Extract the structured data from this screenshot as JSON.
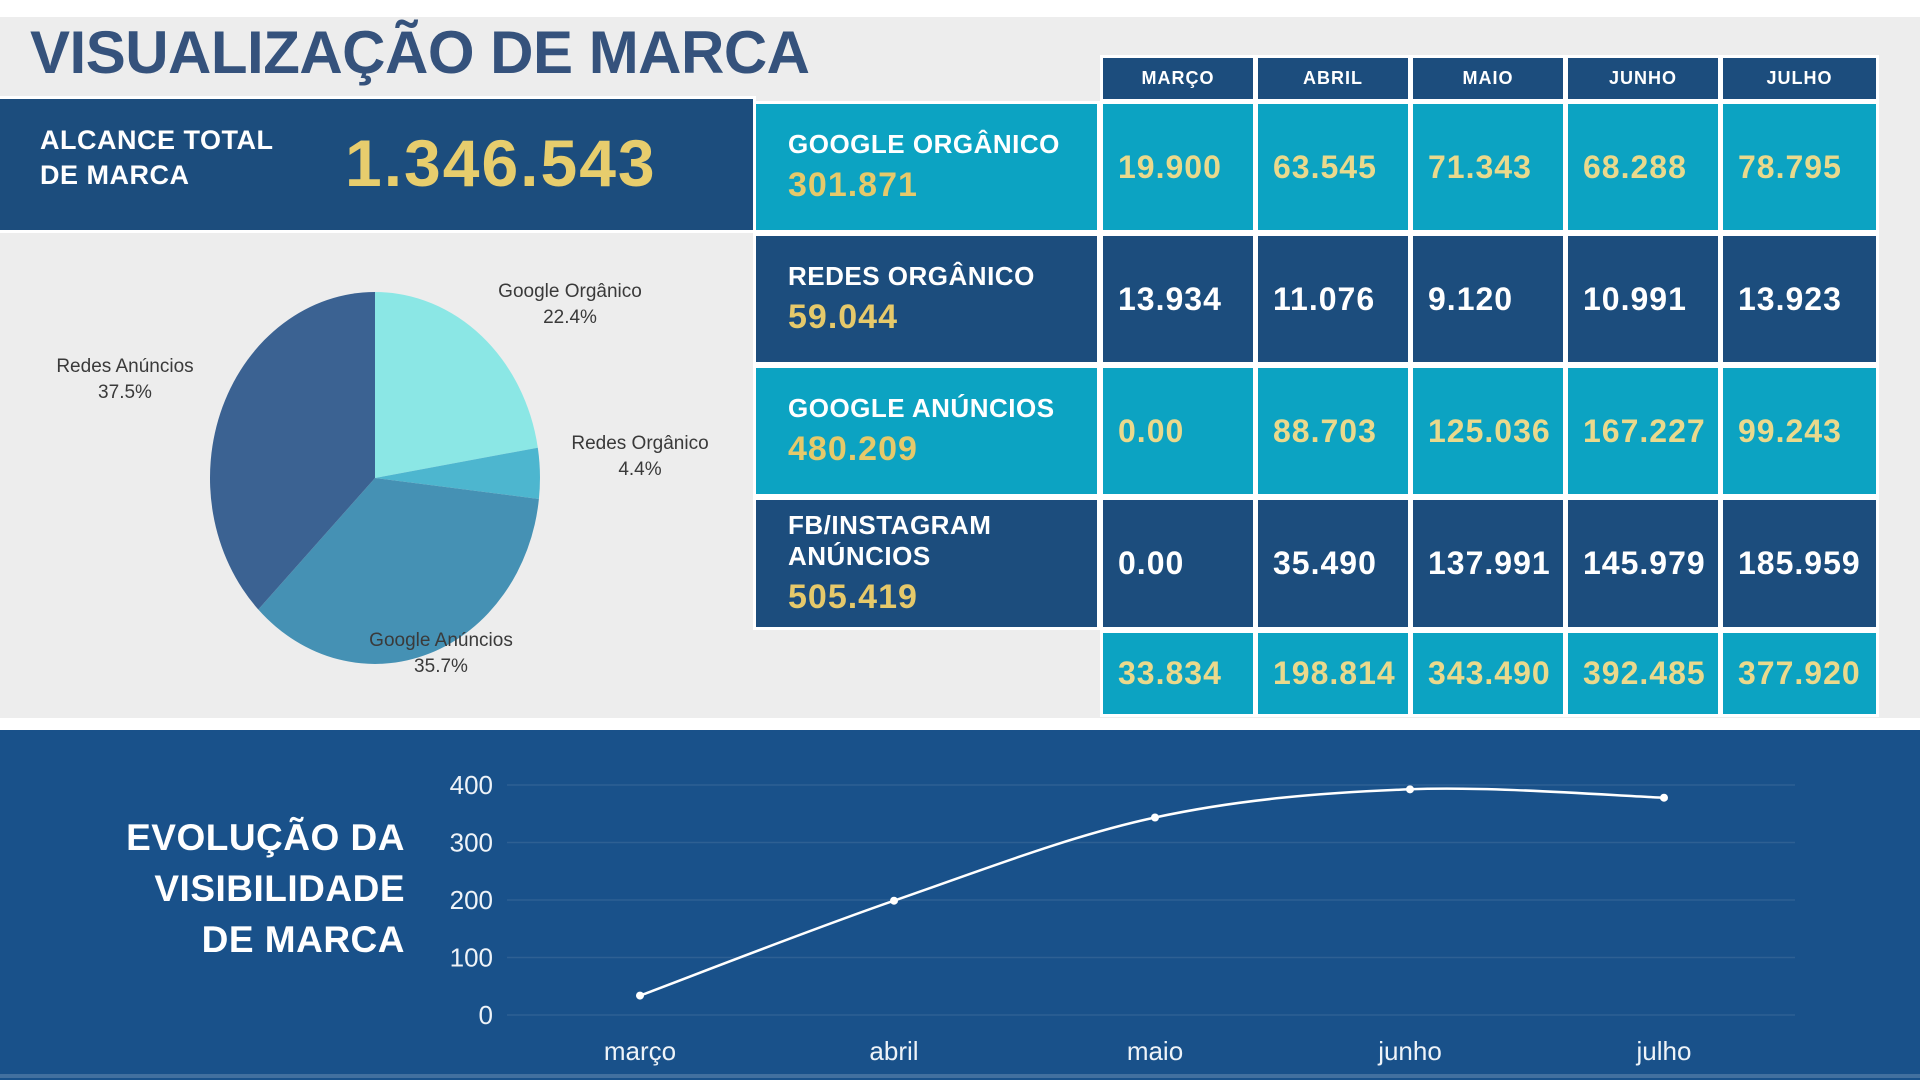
{
  "page_title": "VISUALIZAÇÃO DE MARCA",
  "summary": {
    "label_lines": [
      "ALCANCE TOTAL",
      "DE MARCA"
    ],
    "value": "1.346.543"
  },
  "months": [
    "MARÇO",
    "ABRIL",
    "MAIO",
    "JUNHO",
    "JULHO"
  ],
  "rows": [
    {
      "name": "GOOGLE ORGÂNICO",
      "total": "301.871",
      "variant": "cyan",
      "values": [
        "19.900",
        "63.545",
        "71.343",
        "68.288",
        "78.795"
      ]
    },
    {
      "name": "REDES ORGÂNICO",
      "total": "59.044",
      "variant": "navy",
      "values": [
        "13.934",
        "11.076",
        "9.120",
        "10.991",
        "13.923"
      ]
    },
    {
      "name": "GOOGLE ANÚNCIOS",
      "total": "480.209",
      "variant": "cyan",
      "values": [
        "0.00",
        "88.703",
        "125.036",
        "167.227",
        "99.243"
      ]
    },
    {
      "name": "FB/INSTAGRAM ANÚNCIOS",
      "total": "505.419",
      "variant": "navy",
      "values": [
        "0.00",
        "35.490",
        "137.991",
        "145.979",
        "185.959"
      ]
    }
  ],
  "totals": [
    "33.834",
    "198.814",
    "343.490",
    "392.485",
    "377.920"
  ],
  "colors": {
    "navy": "#1c4d7d",
    "panel_navy": "#19518a",
    "cyan": "#0ca3c2",
    "gold": "#e7cd6d",
    "pale_yellow": "#ead98c",
    "page_bg": "#ededed",
    "title_navy": "#35527c",
    "grid_line": "#2e6093",
    "line_stroke": "#ffffff"
  },
  "chart_data": [
    {
      "type": "pie",
      "title": "",
      "labels": [
        "Google Orgânico",
        "Redes Orgânico",
        "Google Anúncios",
        "Redes Anúncios"
      ],
      "values": [
        22.4,
        4.4,
        35.7,
        37.5
      ],
      "percent_labels": [
        "22.4%",
        "4.4%",
        "35.7%",
        "37.5%"
      ],
      "colors": [
        "#8be7e5",
        "#4db6cf",
        "#4591b4",
        "#3b6292"
      ],
      "legend_position": "around-slices"
    },
    {
      "type": "line",
      "title": "EVOLUÇÃO DA VISIBILIDADE DE MARCA",
      "title_lines": [
        "EVOLUÇÃO DA",
        "VISIBILIDADE",
        "DE MARCA"
      ],
      "x": [
        "março",
        "abril",
        "maio",
        "junho",
        "julho"
      ],
      "values": [
        33.8,
        198.8,
        343.5,
        392.5,
        377.9
      ],
      "ylim": [
        0,
        400
      ],
      "yticks": [
        0,
        100,
        200,
        300,
        400
      ],
      "grid": true,
      "marker": "dot",
      "smooth": true
    }
  ]
}
